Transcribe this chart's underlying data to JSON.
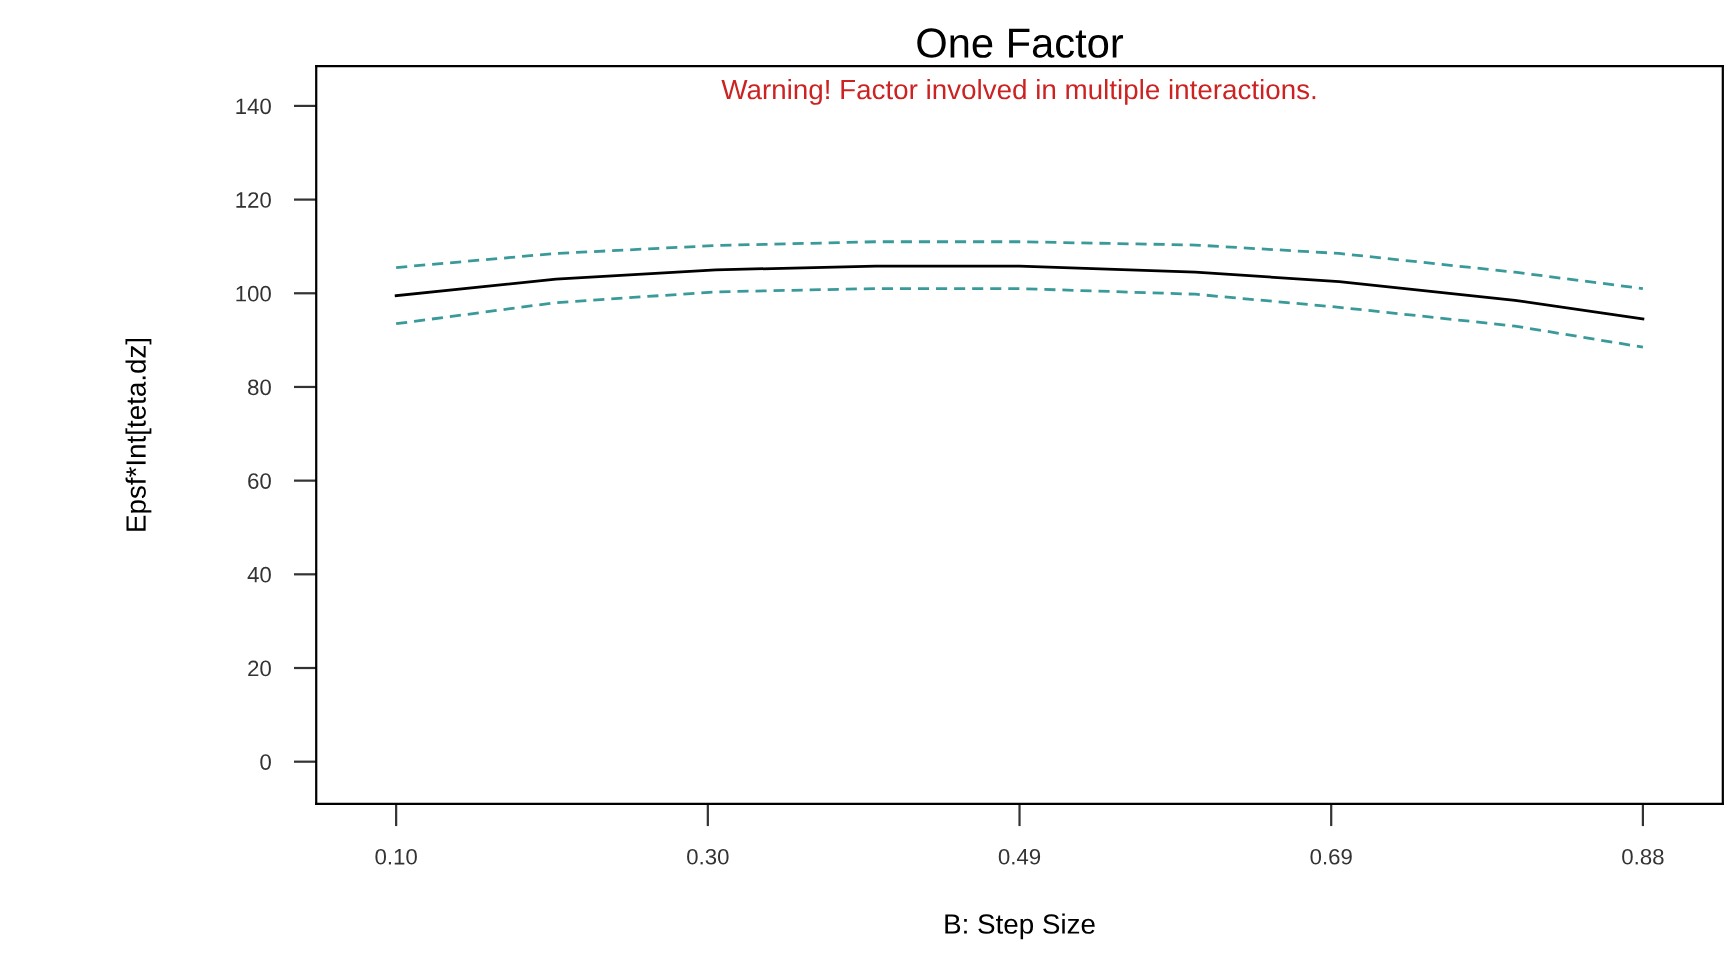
{
  "chart_data": {
    "type": "line",
    "title": "One Factor",
    "xlabel": "B: Step Size",
    "ylabel": "Epsf*Int[teta.dz]",
    "annotations": [
      "Warning! Factor involved in multiple interactions."
    ],
    "x": [
      0.1,
      0.2,
      0.3,
      0.4,
      0.49,
      0.6,
      0.69,
      0.8,
      0.88
    ],
    "series": [
      {
        "color": "#000000",
        "line_style": "solid",
        "values": [
          99.5,
          103,
          105,
          105.8,
          105.8,
          104.5,
          102.5,
          98.5,
          94.5
        ]
      },
      {
        "color": "#3a9a9a",
        "line_style": "dashed",
        "values": [
          105.5,
          108.5,
          110.2,
          111,
          111,
          110.3,
          108.5,
          104.5,
          101
        ]
      },
      {
        "color": "#3a9a9a",
        "line_style": "dashed",
        "values": [
          93.5,
          98,
          100.3,
          101,
          101,
          99.8,
          97,
          93,
          88.5
        ]
      }
    ],
    "xlim": [
      0.05,
      0.93
    ],
    "ylim": [
      -9,
      148.5
    ],
    "xticks": [
      {
        "value": 0.1,
        "label": "0.10"
      },
      {
        "value": 0.295,
        "label": "0.30"
      },
      0.49,
      {
        "value": 0.685,
        "label": "0.69"
      },
      0.88
    ],
    "yticks": [
      0,
      20,
      40,
      60,
      80,
      100,
      120,
      140
    ],
    "grid": false,
    "legend": false,
    "marker": "none"
  }
}
